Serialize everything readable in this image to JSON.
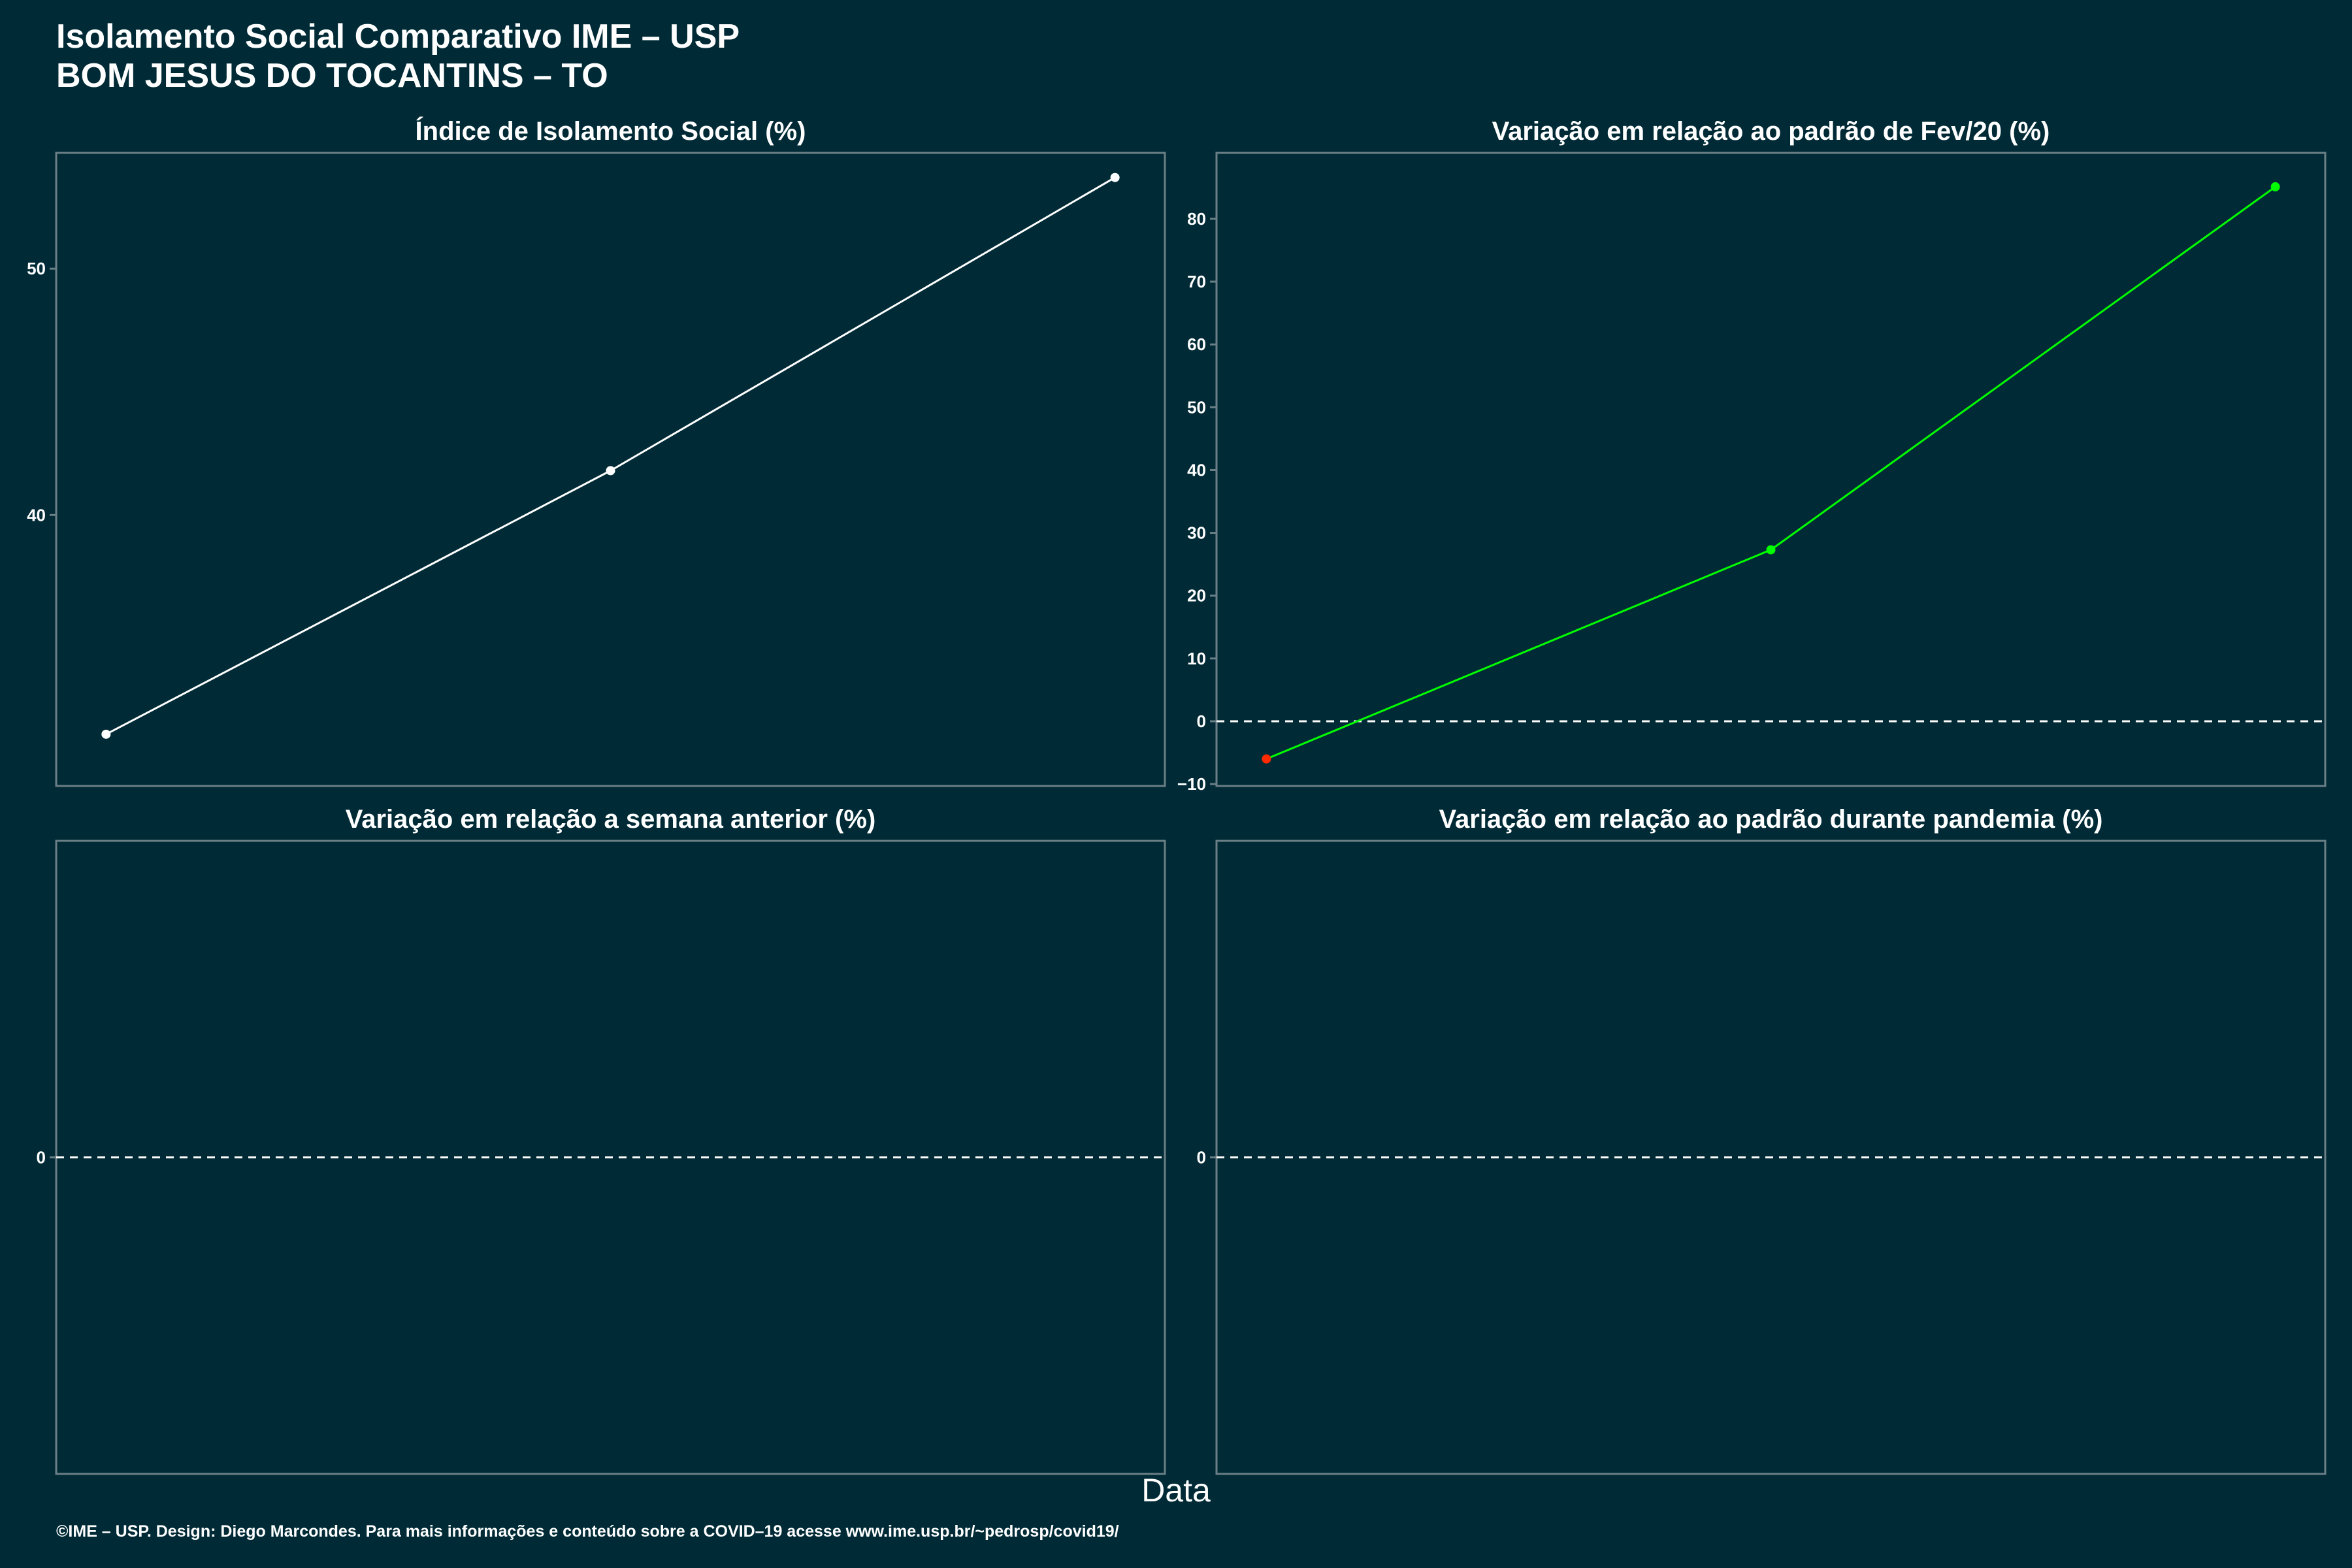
{
  "header": {
    "title_line1": "Isolamento Social Comparativo IME – USP",
    "title_line2": "BOM JESUS DO TOCANTINS – TO"
  },
  "xlabel": "Data",
  "footer": "©IME – USP. Design: Diego Marcondes. Para mais informações e conteúdo sobre a COVID–19 acesse www.ime.usp.br/~pedrosp/covid19/",
  "colors": {
    "background": "#002b36",
    "panel_border": "#6b7f86",
    "white": "#ffffff",
    "green": "#00ff00",
    "red": "#ff2a00"
  },
  "chart_data": [
    {
      "type": "line",
      "title": "Índice de Isolamento Social (%)",
      "x": [
        1,
        2,
        3
      ],
      "series": [
        {
          "values": [
            31.1,
            41.8,
            53.7
          ],
          "color": "#ffffff",
          "point_colors": [
            "#ffffff",
            "#ffffff",
            "#ffffff"
          ]
        }
      ],
      "ylim": [
        29,
        54.7
      ],
      "yticks": [
        40,
        50
      ],
      "hline": null,
      "grid": false
    },
    {
      "type": "line",
      "title": "Variação em relação ao padrão de Fev/20 (%)",
      "x": [
        1,
        2,
        3
      ],
      "series": [
        {
          "values": [
            -6,
            27.3,
            85.1
          ],
          "color": "#00ff00",
          "point_colors": [
            "#ff2a00",
            "#00ff00",
            "#00ff00"
          ]
        }
      ],
      "ylim": [
        -10.3,
        90.5
      ],
      "yticks": [
        -10,
        0,
        10,
        20,
        30,
        40,
        50,
        60,
        70,
        80
      ],
      "hline": 0,
      "grid": false
    },
    {
      "type": "line",
      "title": "Variação em relação a semana anterior (%)",
      "x": [],
      "series": [],
      "ylim": [
        -1,
        1
      ],
      "yticks": [
        0
      ],
      "hline": 0,
      "grid": false
    },
    {
      "type": "line",
      "title": "Variação em relação ao padrão durante pandemia (%)",
      "x": [],
      "series": [],
      "ylim": [
        -1,
        1
      ],
      "yticks": [
        0
      ],
      "hline": 0,
      "grid": false
    }
  ]
}
